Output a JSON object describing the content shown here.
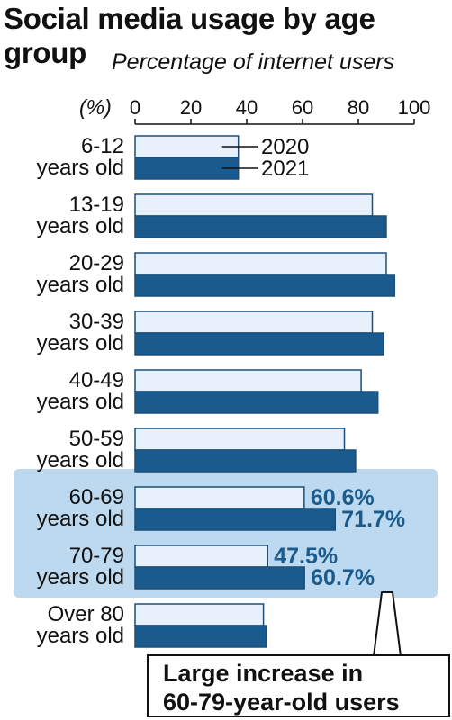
{
  "title_line1": "Social media usage by age",
  "title_line2": "group",
  "subtitle": "Percentage of internet users",
  "callout": {
    "line1": "Large increase in",
    "line2": "60-79-year-old users"
  },
  "colors": {
    "series_2020_fill": "#e8f1fb",
    "series_2021_fill": "#1a5a8c",
    "bar_outline": "#1a4f7c",
    "highlight": "#bcd9ef",
    "data_label": "#1a5a8c"
  },
  "chart_data": {
    "type": "bar",
    "orientation": "horizontal",
    "unit_label": "(%)",
    "xlim": [
      0,
      100
    ],
    "xticks": [
      0,
      20,
      40,
      60,
      80,
      100
    ],
    "categories": [
      [
        "6-12",
        "years old"
      ],
      [
        "13-19",
        "years old"
      ],
      [
        "20-29",
        "years old"
      ],
      [
        "30-39",
        "years old"
      ],
      [
        "40-49",
        "years old"
      ],
      [
        "50-59",
        "years old"
      ],
      [
        "60-69",
        "years old"
      ],
      [
        "70-79",
        "years old"
      ],
      [
        "Over 80",
        "years old"
      ]
    ],
    "series": [
      {
        "name": "2020",
        "values": [
          37,
          85,
          90,
          85,
          81,
          75,
          60.6,
          47.5,
          46
        ]
      },
      {
        "name": "2021",
        "values": [
          37,
          90,
          93,
          89,
          87,
          79,
          71.7,
          60.7,
          47
        ]
      }
    ],
    "data_labels": [
      {
        "category_index": 6,
        "series_index": 0,
        "text": "60.6%"
      },
      {
        "category_index": 6,
        "series_index": 1,
        "text": "71.7%"
      },
      {
        "category_index": 7,
        "series_index": 0,
        "text": "47.5%"
      },
      {
        "category_index": 7,
        "series_index": 1,
        "text": "60.7%"
      }
    ],
    "highlighted_categories": [
      6,
      7
    ]
  }
}
